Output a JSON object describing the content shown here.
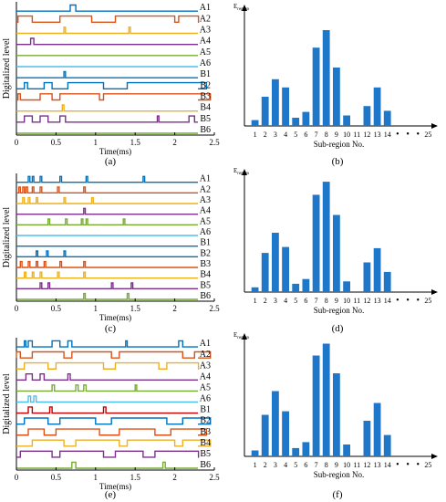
{
  "digital_panels": [
    {
      "label": "(a)",
      "ylabel": "Digitalized  level",
      "xlabel": "Time(ms)",
      "xticks": [
        "0",
        "0.5",
        "1",
        "1.5",
        "2",
        "2.5"
      ],
      "xlim": [
        0,
        2.5
      ],
      "channels": [
        {
          "name": "A1",
          "color": "#0072BD",
          "pulses": [
            [
              0.68,
              0.75
            ]
          ]
        },
        {
          "name": "A2",
          "color": "#D95319",
          "pulses": [
            [
              0.02,
              0.2
            ],
            [
              0.55,
              0.95
            ],
            [
              1.25,
              2.0
            ],
            [
              2.05,
              2.3
            ]
          ]
        },
        {
          "name": "A3",
          "color": "#EDB120",
          "pulses": [
            [
              0.6,
              0.62
            ],
            [
              1.42,
              1.44
            ]
          ]
        },
        {
          "name": "A4",
          "color": "#7E2F8E",
          "pulses": [
            [
              0.18,
              0.22
            ]
          ]
        },
        {
          "name": "A5",
          "color": "#77AC30",
          "pulses": []
        },
        {
          "name": "A6",
          "color": "#4DBEEE",
          "pulses": []
        },
        {
          "name": "B1",
          "color": "#0072BD",
          "pulses": [
            [
              0.6,
              0.62
            ]
          ]
        },
        {
          "name": "B2",
          "color": "#0072BD",
          "pulses": [
            [
              0.1,
              0.14
            ],
            [
              0.35,
              0.45
            ],
            [
              0.65,
              1.1
            ],
            [
              1.4,
              2.4
            ]
          ]
        },
        {
          "name": "B3",
          "color": "#D95319",
          "pulses": [
            [
              0.02,
              0.05
            ],
            [
              0.3,
              0.45
            ],
            [
              0.55,
              1.05
            ],
            [
              1.1,
              2.45
            ]
          ]
        },
        {
          "name": "B4",
          "color": "#EDB120",
          "pulses": [
            [
              0.58,
              0.6
            ]
          ]
        },
        {
          "name": "B5",
          "color": "#7E2F8E",
          "pulses": [
            [
              0.1,
              0.2
            ],
            [
              0.3,
              0.4
            ],
            [
              0.55,
              0.62
            ],
            [
              1.78,
              1.8
            ],
            [
              2.18,
              2.25
            ]
          ]
        },
        {
          "name": "B6",
          "color": "#77AC30",
          "pulses": []
        }
      ]
    },
    {
      "label": "(c)",
      "ylabel": "Digitalized  level",
      "xlabel": "Time(ms)",
      "xticks": [
        "0",
        "0.5",
        "1",
        "1.5",
        "2",
        "2.5"
      ],
      "xlim": [
        0,
        2.5
      ],
      "channels": [
        {
          "name": "A1",
          "color": "#0072BD",
          "pulses": [
            [
              0.15,
              0.17
            ],
            [
              0.2,
              0.22
            ],
            [
              0.3,
              0.32
            ],
            [
              0.55,
              0.57
            ],
            [
              0.88,
              0.9
            ],
            [
              1.6,
              1.62
            ]
          ]
        },
        {
          "name": "A2",
          "color": "#D95319",
          "pulses": [
            [
              0.03,
              0.05
            ],
            [
              0.08,
              0.1
            ],
            [
              0.12,
              0.14
            ],
            [
              0.2,
              0.22
            ],
            [
              0.3,
              0.32
            ],
            [
              0.52,
              0.54
            ],
            [
              0.85,
              0.87
            ]
          ]
        },
        {
          "name": "A3",
          "color": "#EDB120",
          "pulses": [
            [
              0.08,
              0.1
            ],
            [
              0.15,
              0.17
            ],
            [
              0.25,
              0.27
            ],
            [
              0.6,
              0.62
            ],
            [
              0.95,
              0.97
            ]
          ]
        },
        {
          "name": "A4",
          "color": "#7E2F8E",
          "pulses": [
            [
              0.85,
              0.87
            ]
          ]
        },
        {
          "name": "A5",
          "color": "#77AC30",
          "pulses": [
            [
              0.4,
              0.42
            ],
            [
              0.62,
              0.64
            ],
            [
              0.82,
              0.84
            ],
            [
              0.88,
              0.9
            ],
            [
              1.35,
              1.37
            ]
          ]
        },
        {
          "name": "A6",
          "color": "#4DBEEE",
          "pulses": []
        },
        {
          "name": "B1",
          "color": "#0072BD",
          "pulses": []
        },
        {
          "name": "B2",
          "color": "#0072BD",
          "pulses": [
            [
              0.25,
              0.27
            ],
            [
              0.38,
              0.4
            ],
            [
              0.6,
              0.62
            ]
          ]
        },
        {
          "name": "B3",
          "color": "#D95319",
          "pulses": [
            [
              0.05,
              0.07
            ],
            [
              0.15,
              0.17
            ],
            [
              0.25,
              0.27
            ],
            [
              0.35,
              0.37
            ],
            [
              0.55,
              0.57
            ],
            [
              0.85,
              0.87
            ]
          ]
        },
        {
          "name": "B4",
          "color": "#EDB120",
          "pulses": [
            [
              0.1,
              0.12
            ],
            [
              0.2,
              0.22
            ],
            [
              0.3,
              0.32
            ],
            [
              0.52,
              0.54
            ],
            [
              0.85,
              0.87
            ]
          ]
        },
        {
          "name": "B5",
          "color": "#7E2F8E",
          "pulses": [
            [
              0.3,
              0.32
            ],
            [
              0.4,
              0.42
            ],
            [
              1.2,
              1.22
            ],
            [
              1.45,
              1.47
            ]
          ]
        },
        {
          "name": "B6",
          "color": "#77AC30",
          "pulses": [
            [
              0.85,
              0.87
            ],
            [
              1.4,
              1.42
            ]
          ]
        }
      ]
    },
    {
      "label": "(e)",
      "ylabel": "Digitalized  level",
      "xlabel": "Time(ms)",
      "xticks": [
        "0",
        "0.5",
        "1",
        "1.5",
        "2",
        "2.5"
      ],
      "xlim": [
        0,
        2.5
      ],
      "channels": [
        {
          "name": "A1",
          "color": "#0072BD",
          "pulses": [
            [
              0.1,
              0.12
            ],
            [
              0.15,
              0.2
            ],
            [
              0.45,
              0.55
            ],
            [
              0.65,
              0.7
            ],
            [
              1.38,
              1.4
            ],
            [
              2.05,
              2.1
            ]
          ]
        },
        {
          "name": "A2",
          "color": "#D95319",
          "pulses": [
            [
              0.0,
              0.05
            ],
            [
              0.2,
              0.6
            ],
            [
              0.7,
              1.2
            ],
            [
              1.3,
              2.1
            ],
            [
              2.25,
              2.45
            ]
          ]
        },
        {
          "name": "A3",
          "color": "#EDB120",
          "pulses": [
            [
              0.1,
              0.4
            ],
            [
              0.5,
              1.1
            ],
            [
              1.25,
              1.8
            ],
            [
              1.9,
              2.3
            ]
          ]
        },
        {
          "name": "A4",
          "color": "#7E2F8E",
          "pulses": [
            [
              0.12,
              0.2
            ],
            [
              0.3,
              0.35
            ],
            [
              0.65,
              0.68
            ]
          ]
        },
        {
          "name": "A5",
          "color": "#77AC30",
          "pulses": [
            [
              0.45,
              0.48
            ],
            [
              0.75,
              0.78
            ],
            [
              0.85,
              0.88
            ],
            [
              1.5,
              1.52
            ]
          ]
        },
        {
          "name": "A6",
          "color": "#4DBEEE",
          "pulses": [
            [
              0.15,
              0.18
            ],
            [
              0.22,
              0.25
            ]
          ]
        },
        {
          "name": "B1",
          "color": "#C00000",
          "pulses": [
            [
              0.15,
              0.2
            ],
            [
              0.42,
              0.45
            ],
            [
              1.1,
              1.13
            ]
          ]
        },
        {
          "name": "B2",
          "color": "#0072BD",
          "pulses": [
            [
              0.1,
              0.4
            ],
            [
              0.55,
              1.0
            ],
            [
              1.2,
              1.9
            ],
            [
              2.1,
              2.45
            ]
          ]
        },
        {
          "name": "B3",
          "color": "#D95319",
          "pulses": [
            [
              0.15,
              0.35
            ],
            [
              0.5,
              1.05
            ],
            [
              1.3,
              1.75
            ],
            [
              1.95,
              2.4
            ]
          ]
        },
        {
          "name": "B4",
          "color": "#EDB120",
          "pulses": [
            [
              0.2,
              0.6
            ],
            [
              0.75,
              1.3
            ],
            [
              1.4,
              2.0
            ],
            [
              2.1,
              2.45
            ]
          ]
        },
        {
          "name": "B5",
          "color": "#7E2F8E",
          "pulses": [
            [
              0.05,
              0.45
            ],
            [
              0.55,
              1.1
            ],
            [
              1.25,
              1.6
            ],
            [
              1.75,
              2.3
            ]
          ]
        },
        {
          "name": "B6",
          "color": "#77AC30",
          "pulses": [
            [
              0.7,
              0.75
            ],
            [
              1.85,
              1.88
            ]
          ]
        }
      ]
    }
  ],
  "chart_data": [
    {
      "type": "bar",
      "label": "(b)",
      "ylabel": "E",
      "ylabel_sub": "region",
      "xlabel": "Sub-region No.",
      "categories": [
        "1",
        "2",
        "3",
        "4",
        "5",
        "6",
        "7",
        "8",
        "9",
        "10",
        "11",
        "12",
        "13",
        "14",
        "•",
        "•",
        "•",
        "25"
      ],
      "values": [
        0.05,
        0.25,
        0.4,
        0.33,
        0.07,
        0.12,
        0.67,
        0.82,
        0.5,
        0.09,
        0,
        0.17,
        0.33,
        0.13,
        0,
        0,
        0,
        0
      ],
      "ylim": [
        0,
        1
      ]
    },
    {
      "type": "bar",
      "label": "(d)",
      "ylabel": "E",
      "ylabel_sub": "region",
      "xlabel": "Sub-region No.",
      "categories": [
        "1",
        "2",
        "3",
        "4",
        "5",
        "6",
        "7",
        "8",
        "9",
        "10",
        "11",
        "12",
        "13",
        "14",
        "•",
        "•",
        "•",
        "25"
      ],
      "values": [
        0.04,
        0.33,
        0.5,
        0.38,
        0.07,
        0.11,
        0.82,
        0.93,
        0.65,
        0.09,
        0,
        0.25,
        0.37,
        0.17,
        0,
        0,
        0,
        0
      ],
      "ylim": [
        0,
        1
      ]
    },
    {
      "type": "bar",
      "label": "(f)",
      "ylabel": "E",
      "ylabel_sub": "region",
      "xlabel": "Sub-region No.",
      "categories": [
        "1",
        "2",
        "3",
        "4",
        "5",
        "6",
        "7",
        "8",
        "9",
        "10",
        "11",
        "12",
        "13",
        "14",
        "•",
        "•",
        "•",
        "25"
      ],
      "values": [
        0.05,
        0.35,
        0.55,
        0.38,
        0.07,
        0.12,
        0.85,
        0.95,
        0.7,
        0.1,
        0,
        0.3,
        0.45,
        0.18,
        0,
        0,
        0,
        0
      ],
      "ylim": [
        0,
        1
      ]
    }
  ],
  "colors": {
    "bar": "#1F77C9",
    "axis": "#000000"
  }
}
